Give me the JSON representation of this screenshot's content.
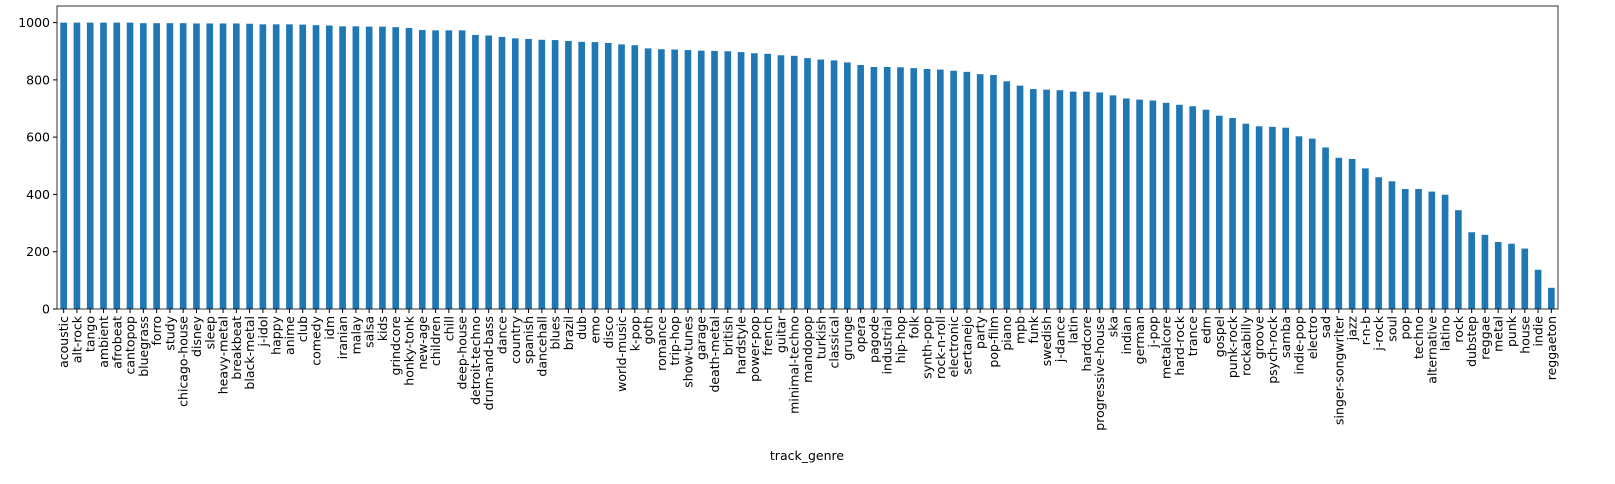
{
  "chart_data": {
    "type": "bar",
    "x_label": "track_genre",
    "categories": [
      "acoustic",
      "alt-rock",
      "tango",
      "ambient",
      "afrobeat",
      "cantopop",
      "bluegrass",
      "forro",
      "study",
      "chicago-house",
      "disney",
      "sleep",
      "heavy-metal",
      "breakbeat",
      "black-metal",
      "j-idol",
      "happy",
      "anime",
      "club",
      "comedy",
      "idm",
      "iranian",
      "malay",
      "salsa",
      "kids",
      "grindcore",
      "honky-tonk",
      "new-age",
      "children",
      "chill",
      "deep-house",
      "detroit-techno",
      "drum-and-bass",
      "dance",
      "country",
      "spanish",
      "dancehall",
      "blues",
      "brazil",
      "dub",
      "emo",
      "disco",
      "world-music",
      "k-pop",
      "goth",
      "romance",
      "trip-hop",
      "show-tunes",
      "garage",
      "death-metal",
      "british",
      "hardstyle",
      "power-pop",
      "french",
      "guitar",
      "minimal-techno",
      "mandopop",
      "turkish",
      "classical",
      "grunge",
      "opera",
      "pagode",
      "industrial",
      "hip-hop",
      "folk",
      "synth-pop",
      "rock-n-roll",
      "electronic",
      "sertanejo",
      "party",
      "pop-film",
      "piano",
      "mpb",
      "funk",
      "swedish",
      "j-dance",
      "latin",
      "hardcore",
      "progressive-house",
      "ska",
      "indian",
      "german",
      "j-pop",
      "metalcore",
      "hard-rock",
      "trance",
      "edm",
      "gospel",
      "punk-rock",
      "rockabilly",
      "groove",
      "psych-rock",
      "samba",
      "indie-pop",
      "electro",
      "sad",
      "singer-songwriter",
      "jazz",
      "r-n-b",
      "j-rock",
      "soul",
      "pop",
      "techno",
      "alternative",
      "latino",
      "rock",
      "dubstep",
      "reggae",
      "metal",
      "punk",
      "house",
      "indie",
      "reggaeton"
    ],
    "values": [
      1000,
      1000,
      1000,
      1000,
      1000,
      1000,
      998,
      998,
      998,
      998,
      997,
      997,
      997,
      997,
      996,
      994,
      994,
      994,
      993,
      991,
      990,
      987,
      987,
      986,
      986,
      984,
      981,
      974,
      973,
      973,
      973,
      957,
      955,
      950,
      945,
      943,
      940,
      939,
      936,
      933,
      932,
      929,
      924,
      921,
      910,
      907,
      906,
      904,
      902,
      901,
      900,
      897,
      893,
      891,
      886,
      884,
      876,
      871,
      868,
      861,
      852,
      845,
      845,
      844,
      841,
      838,
      836,
      832,
      828,
      820,
      817,
      795,
      780,
      768,
      766,
      764,
      759,
      759,
      756,
      746,
      735,
      731,
      728,
      720,
      713,
      708,
      696,
      675,
      667,
      647,
      638,
      636,
      633,
      603,
      595,
      564,
      528,
      524,
      491,
      460,
      446,
      419,
      419,
      410,
      399,
      345,
      268,
      259,
      234,
      228,
      211,
      137,
      74
    ],
    "color": "#1f77b4",
    "ylim": [
      0,
      1058
    ],
    "yticks": [
      0,
      200,
      400,
      600,
      800,
      1000
    ]
  }
}
